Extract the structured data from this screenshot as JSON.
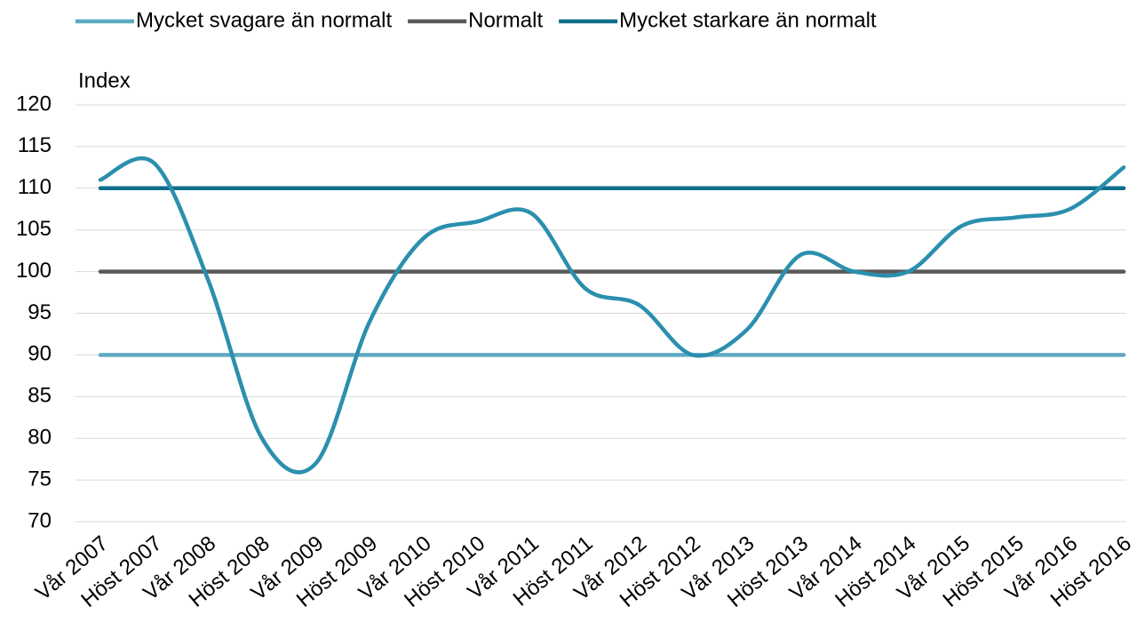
{
  "chart_data": {
    "type": "line",
    "y_label": "Index",
    "categories": [
      "Vår 2007",
      "Höst 2007",
      "Vår 2008",
      "Höst 2008",
      "Vår 2009",
      "Höst 2009",
      "Vår 2010",
      "Höst 2010",
      "Vår 2011",
      "Höst 2011",
      "Vår 2012",
      "Höst 2012",
      "Vår 2013",
      "Höst 2013",
      "Vår 2014",
      "Höst 2014",
      "Vår 2015",
      "Höst 2015",
      "Vår 2016",
      "Höst 2016"
    ],
    "series": [
      {
        "name": "Mycket svagare än normalt",
        "color": "#5ea9c2",
        "values": [
          90,
          90,
          90,
          90,
          90,
          90,
          90,
          90,
          90,
          90,
          90,
          90,
          90,
          90,
          90,
          90,
          90,
          90,
          90,
          90
        ]
      },
      {
        "name": "Normalt",
        "color": "#595959",
        "values": [
          100,
          100,
          100,
          100,
          100,
          100,
          100,
          100,
          100,
          100,
          100,
          100,
          100,
          100,
          100,
          100,
          100,
          100,
          100,
          100
        ]
      },
      {
        "name": "Mycket starkare än normalt",
        "color": "#0f6d8c",
        "values": [
          110,
          110,
          110,
          110,
          110,
          110,
          110,
          110,
          110,
          110,
          110,
          110,
          110,
          110,
          110,
          110,
          110,
          110,
          110,
          110
        ]
      },
      {
        "color": "#2b8fae",
        "smooth": true,
        "values": [
          111,
          113,
          99,
          80,
          77,
          94,
          104,
          106,
          107,
          98,
          96,
          90,
          93,
          102,
          100,
          100,
          105.5,
          106.5,
          107.5,
          112.5
        ]
      }
    ],
    "ylim": [
      70,
      120
    ],
    "yticks": [
      70,
      75,
      80,
      85,
      90,
      95,
      100,
      105,
      110,
      115,
      120
    ],
    "grid": true
  }
}
